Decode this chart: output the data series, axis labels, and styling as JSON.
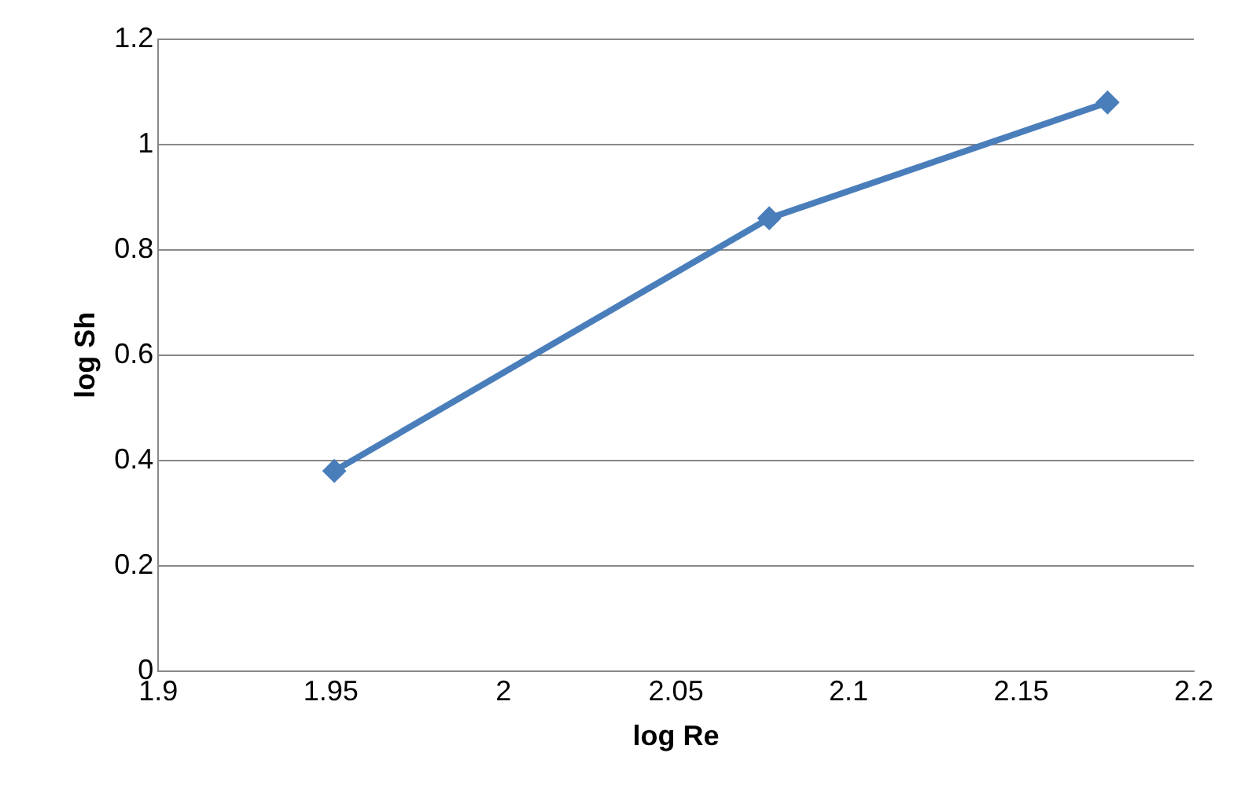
{
  "chart_data": {
    "type": "line",
    "xlabel": "log Re",
    "ylabel": "log Sh",
    "x": [
      1.951,
      2.077,
      2.175
    ],
    "series": [
      {
        "color": "#4a7ebb",
        "values": [
          0.38,
          0.86,
          1.08
        ]
      }
    ],
    "xlim": [
      1.9,
      2.2
    ],
    "xticks": [
      1.9,
      1.95,
      2,
      2.05,
      2.1,
      2.15,
      2.2
    ],
    "ylim": [
      0,
      1.2
    ],
    "yticks": [
      0,
      0.2,
      0.4,
      0.6,
      0.8,
      1,
      1.2
    ],
    "grid": "y",
    "legend": false,
    "marker": "diamond",
    "line_style": "solid"
  }
}
